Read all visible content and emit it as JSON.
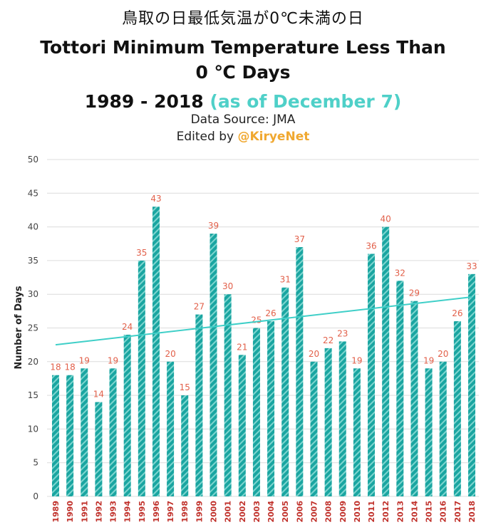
{
  "header": {
    "title_jp": "鳥取の日最低気温が0℃未満の日",
    "title_en_line1": "Tottori Minimum Temperature Less Than",
    "title_en_line2": "0 ℃ Days",
    "period": "1989 - 2018",
    "as_of": "(as of December 7)",
    "source": "Data Source: JMA",
    "edited_prefix": "Edited by ",
    "edited_handle": "@KiryeNet"
  },
  "colors": {
    "bar": "#1aa5a1",
    "bar_stripe": "#7fd6d0",
    "bar_label": "#e2604a",
    "year_label": "#c0302a",
    "trend": "#3fcfc8",
    "grid": "#dcdcdc",
    "axis_text": "#444444"
  },
  "chart_data": {
    "type": "bar",
    "ylabel": "Number of Days",
    "xlabel": "",
    "ylim": [
      0,
      50
    ],
    "yticks": [
      0,
      5,
      10,
      15,
      20,
      25,
      30,
      35,
      40,
      45,
      50
    ],
    "grid": true,
    "categories": [
      "1989",
      "1990",
      "1991",
      "1992",
      "1993",
      "1994",
      "1995",
      "1996",
      "1997",
      "1998",
      "1999",
      "2000",
      "2001",
      "2002",
      "2003",
      "2004",
      "2005",
      "2006",
      "2007",
      "2008",
      "2009",
      "2010",
      "2011",
      "2012",
      "2013",
      "2014",
      "2015",
      "2016",
      "2017",
      "2018"
    ],
    "values": [
      18,
      18,
      19,
      14,
      19,
      24,
      35,
      43,
      20,
      15,
      27,
      39,
      30,
      21,
      25,
      26,
      31,
      37,
      20,
      22,
      23,
      19,
      36,
      40,
      32,
      29,
      19,
      20,
      26,
      33
    ],
    "trendline": {
      "start": 22.5,
      "end": 29.6
    }
  }
}
